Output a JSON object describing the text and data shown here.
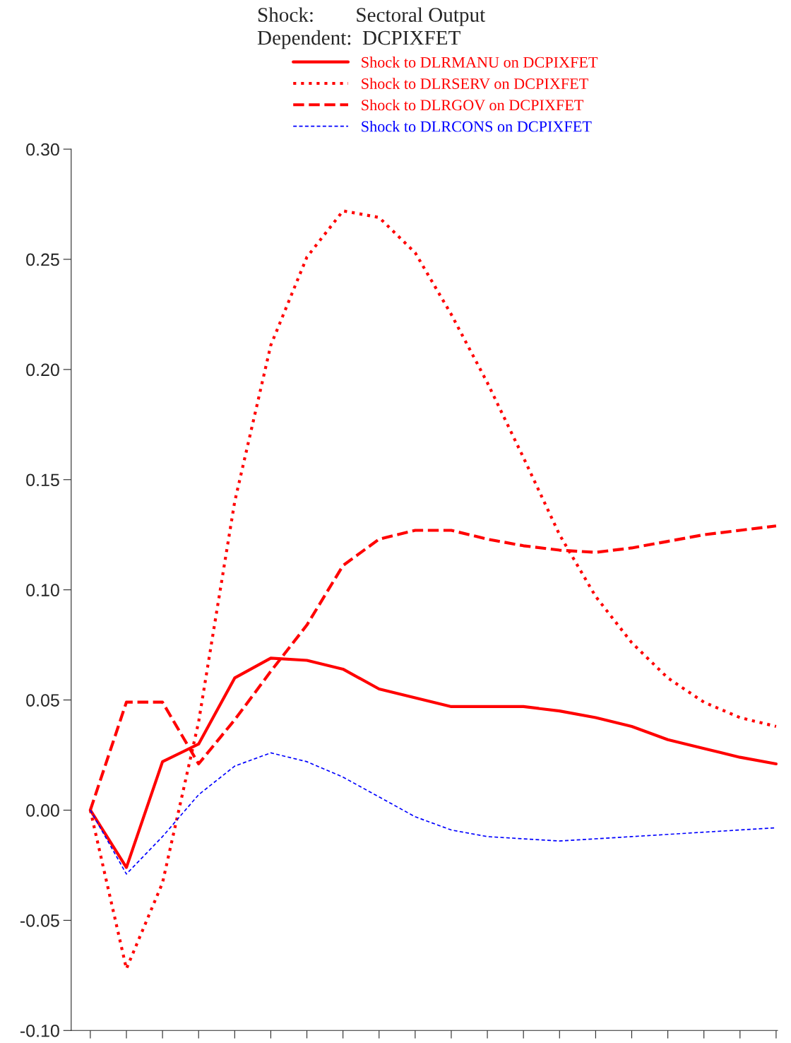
{
  "chart_data": {
    "type": "line",
    "title": "Shock:        Sectoral Output",
    "subtitle": "Dependent:  DCPIXFET",
    "categories": [
      null,
      null,
      null,
      null,
      null,
      null,
      null,
      null,
      null,
      null,
      null,
      null,
      null,
      null,
      null,
      null,
      null,
      null,
      null,
      null
    ],
    "series": [
      {
        "name": "Shock to DLRMANU on DCPIXFET",
        "color": "#ff0000",
        "line_style": "solid",
        "values": [
          0,
          -0.026,
          0.022,
          0.03,
          0.06,
          0.069,
          0.068,
          0.064,
          0.055,
          0.051,
          0.047,
          0.047,
          0.047,
          0.045,
          0.042,
          0.038,
          0.032,
          0.028,
          0.024,
          0.021
        ]
      },
      {
        "name": "Shock to DLRSERV on DCPIXFET",
        "color": "#ff0000",
        "line_style": "dotted",
        "values": [
          0,
          -0.072,
          -0.033,
          0.04,
          0.14,
          0.211,
          0.251,
          0.272,
          0.269,
          0.253,
          0.225,
          0.194,
          0.16,
          0.125,
          0.097,
          0.076,
          0.06,
          0.049,
          0.042,
          0.038
        ]
      },
      {
        "name": "Shock to DLRGOV on DCPIXFET",
        "color": "#ff0000",
        "line_style": "dashed",
        "values": [
          0,
          0.049,
          0.049,
          0.021,
          0.041,
          0.063,
          0.084,
          0.111,
          0.123,
          0.127,
          0.127,
          0.123,
          0.12,
          0.118,
          0.117,
          0.119,
          0.122,
          0.125,
          0.127,
          0.129
        ]
      },
      {
        "name": "Shock to DLRCONS on DCPIXFET",
        "color": "#0000ff",
        "line_style": "dotted",
        "values": [
          0,
          -0.029,
          -0.012,
          0.007,
          0.02,
          0.026,
          0.022,
          0.015,
          0.006,
          -0.003,
          -0.009,
          -0.012,
          -0.013,
          -0.014,
          -0.013,
          -0.012,
          -0.011,
          -0.01,
          -0.009,
          -0.008
        ]
      }
    ],
    "ylim": [
      -0.1,
      0.3
    ],
    "yticks": [
      {
        "value": -0.1,
        "label": "-0.10"
      },
      {
        "value": -0.05,
        "label": "-0.05"
      },
      {
        "value": 0,
        "label": "0.00"
      },
      {
        "value": 0.05,
        "label": "0.05"
      },
      {
        "value": 0.1,
        "label": "0.10"
      },
      {
        "value": 0.15,
        "label": "0.15"
      },
      {
        "value": 0.2,
        "label": "0.20"
      },
      {
        "value": 0.25,
        "label": "0.25"
      },
      {
        "value": 0.3,
        "label": "0.30"
      }
    ],
    "legend": "top",
    "grid": false,
    "tick_labels": "y"
  }
}
